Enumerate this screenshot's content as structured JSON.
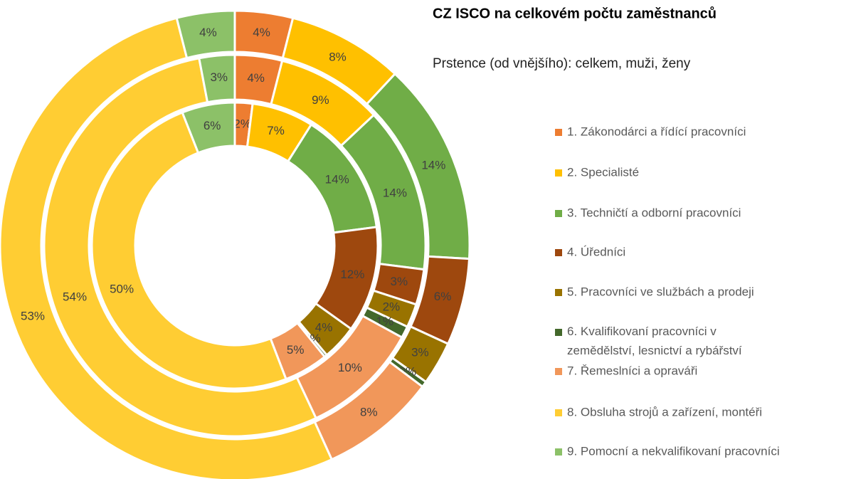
{
  "chart_data": {
    "type": "pie",
    "title": "CZ ISCO na celkovém počtu zaměstnanců",
    "subtitle": "Prstence (od vnějšího): celkem, muži, ženy",
    "categories": [
      "1. Zákonodárci a řídící pracovníci",
      "2. Specialisté",
      "3. Techničtí a odborní pracovníci",
      "4. Úředníci",
      "5. Pracovníci ve službách a prodeji",
      "6. Kvalifikovaní pracovníci v zemědělství, lesnictví a rybářství",
      "7. Řemeslníci a opraváři",
      "8. Obsluha strojů a zařízení, montéři",
      "9. Pomocní a nekvalifikovaní pracovníci"
    ],
    "colors": [
      "#ED7D31",
      "#FFC000",
      "#70AD47",
      "#9E480E",
      "#997300",
      "#43682B",
      "#F1975A",
      "#FFCD33",
      "#8CC168"
    ],
    "series": [
      {
        "values": [
          4,
          8,
          14,
          6,
          3,
          0.4,
          8,
          53,
          4
        ],
        "value_labels": [
          "4%",
          "8%",
          "14%",
          "6%",
          "3%",
          "0%",
          "8%",
          "53%",
          "4%"
        ]
      },
      {
        "values": [
          4,
          9,
          14,
          3,
          2,
          1,
          10,
          54,
          3
        ],
        "value_labels": [
          "4%",
          "9%",
          "14%",
          "3%",
          "2%",
          "1%",
          "10%",
          "54%",
          "3%"
        ]
      },
      {
        "values": [
          2,
          7,
          14,
          12,
          4,
          0.3,
          5,
          50,
          6
        ],
        "value_labels": [
          "2%",
          "7%",
          "14%",
          "12%",
          "4%",
          "0%",
          "5%",
          "50%",
          "6%"
        ]
      }
    ]
  }
}
